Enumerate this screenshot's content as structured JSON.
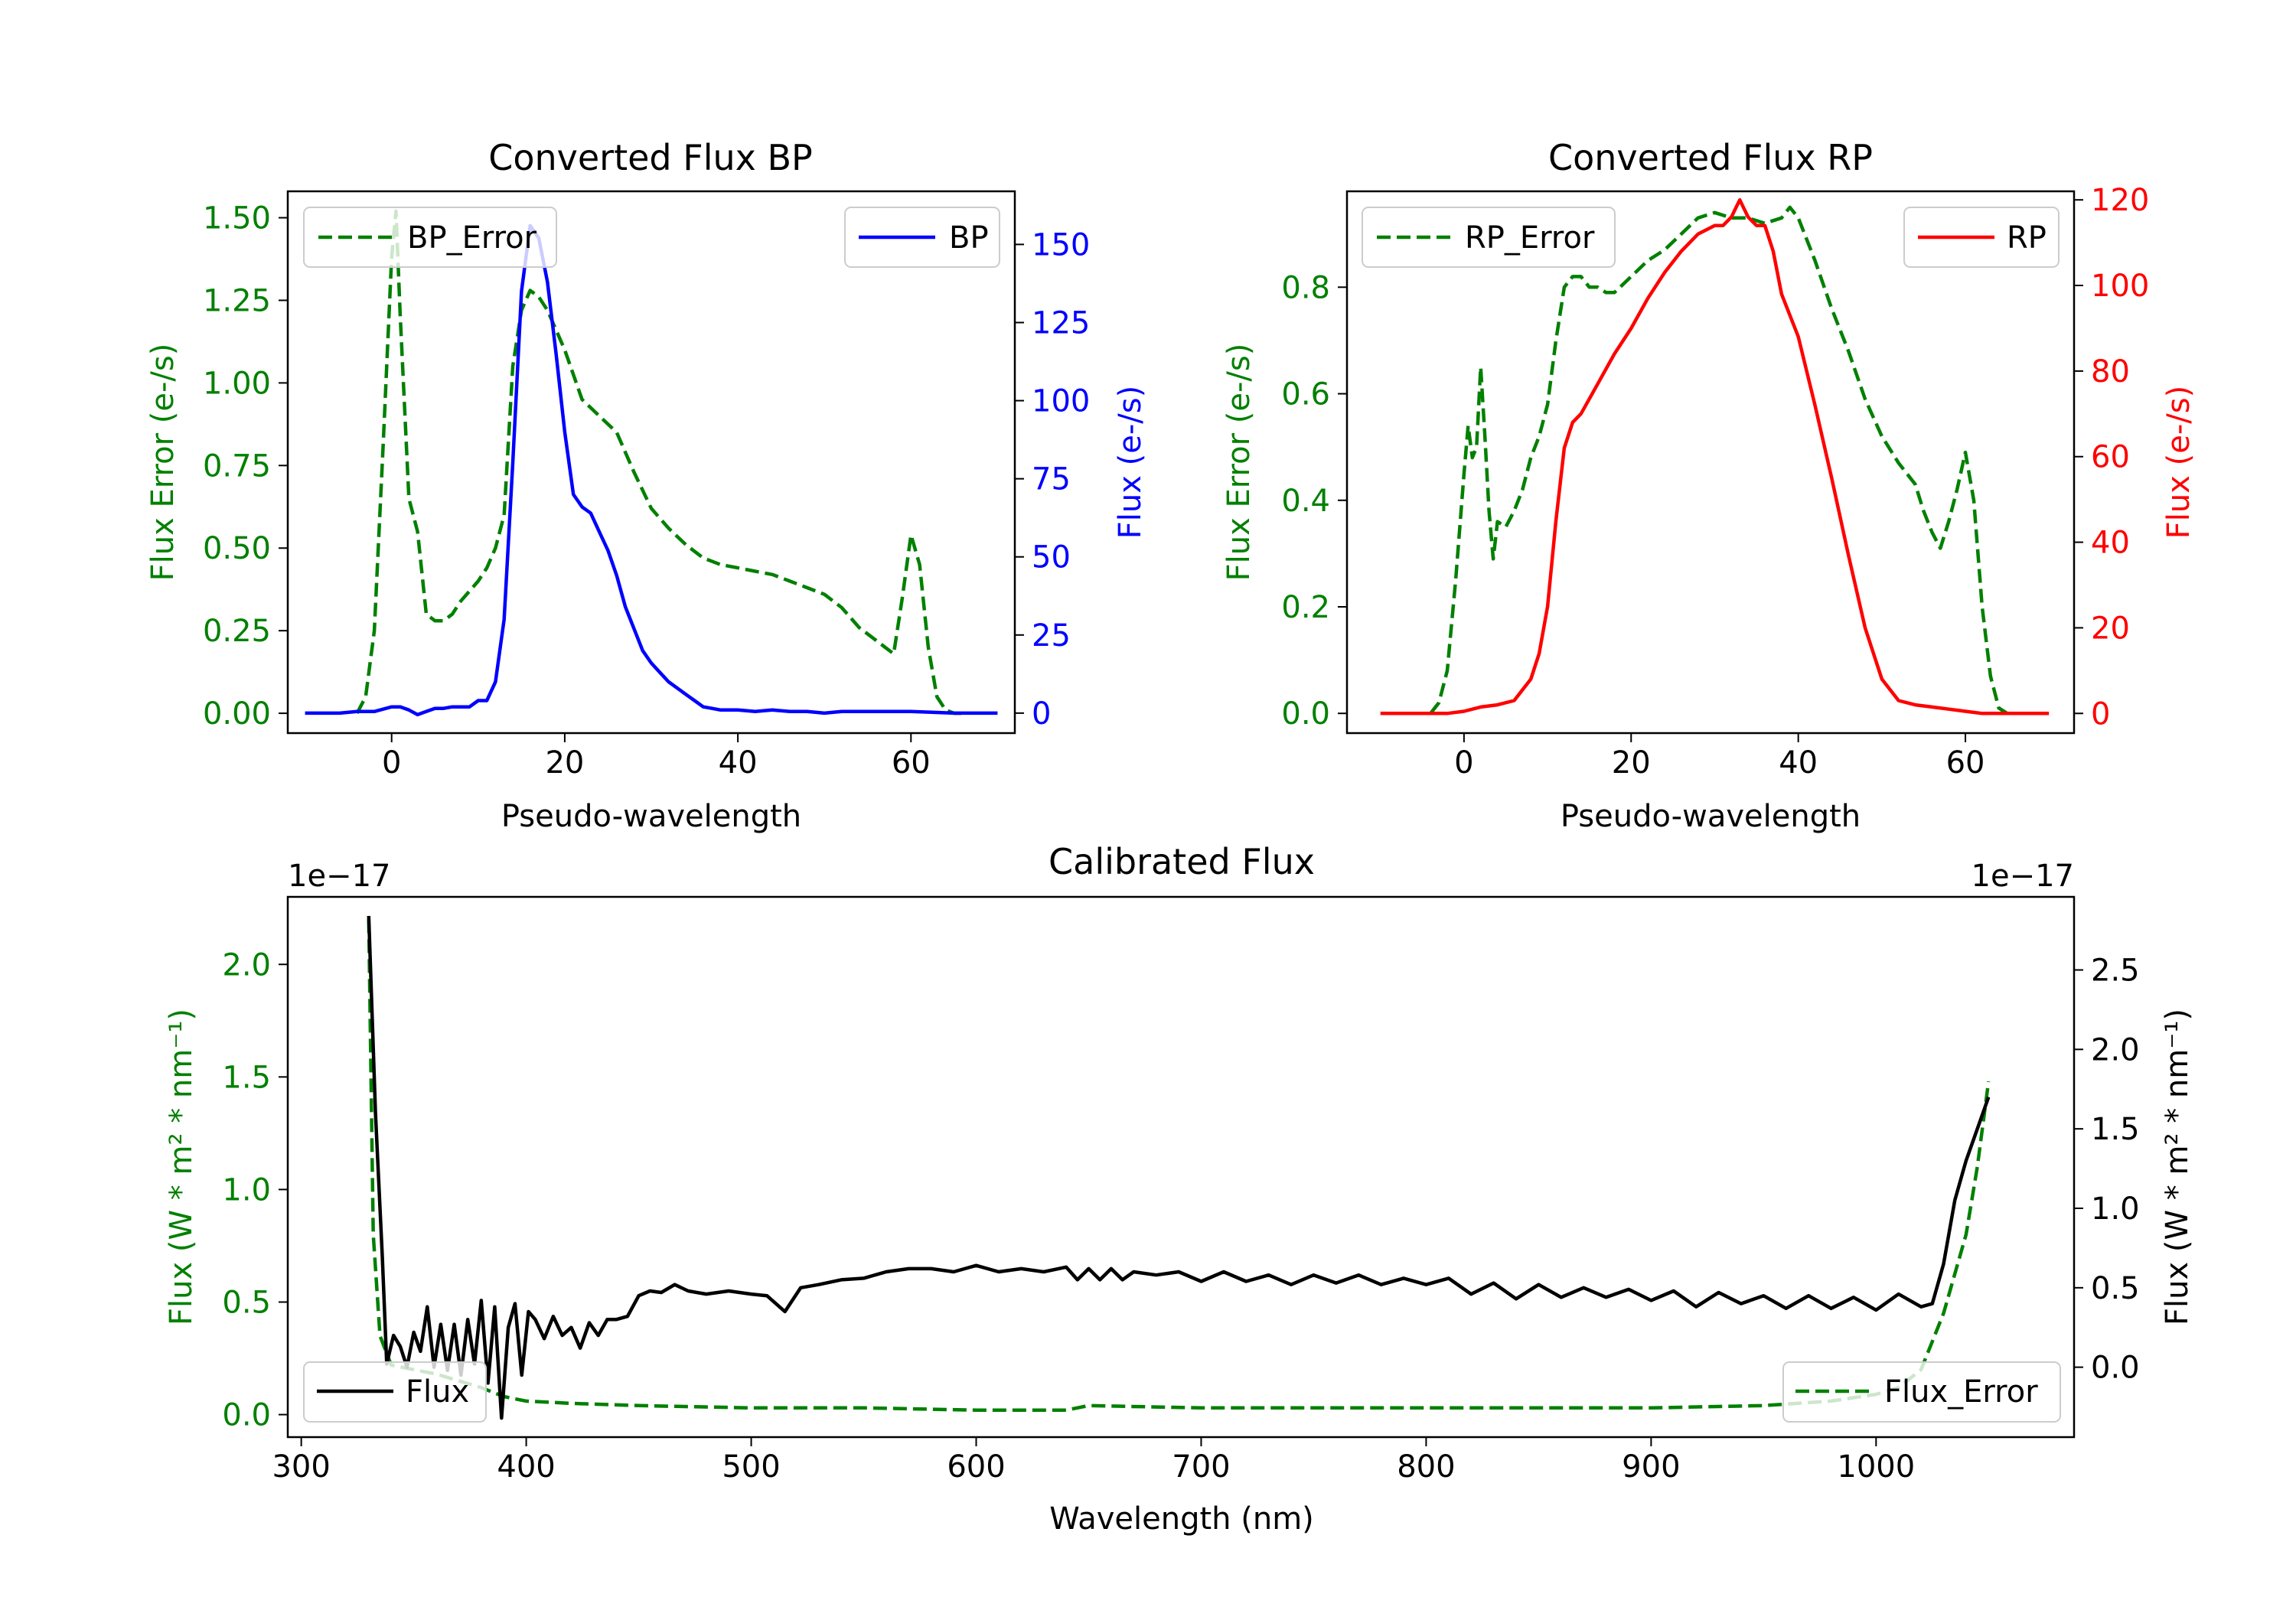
{
  "chart_data": [
    {
      "type": "line",
      "title": "Converted Flux BP",
      "xlabel": "Pseudo-wavelength",
      "ylabel_left": "Flux Error (e-/s)",
      "ylabel_right": "Flux (e-/s)",
      "xlim": [
        -12,
        72
      ],
      "ylim_left": [
        -0.06,
        1.58
      ],
      "ylim_right": [
        -6.4,
        167
      ],
      "xticks": [
        0,
        20,
        40,
        60
      ],
      "yticks_left": [
        "0.00",
        "0.25",
        "0.50",
        "0.75",
        "1.00",
        "1.25",
        "1.50"
      ],
      "yticks_right": [
        "0",
        "25",
        "50",
        "75",
        "100",
        "125",
        "150"
      ],
      "left_color": "#008000",
      "right_color": "#0000ff",
      "series": [
        {
          "name": "BP_Error",
          "axis": "left",
          "style": "dashed",
          "color": "#008000",
          "x": [
            -4,
            -3,
            -2,
            -1,
            0,
            0.5,
            1,
            2,
            3,
            4,
            5,
            6,
            7,
            8,
            9,
            10,
            11,
            12,
            13,
            14,
            15,
            16,
            17,
            18,
            19,
            20,
            22,
            24,
            26,
            28,
            30,
            32,
            34,
            36,
            38,
            40,
            42,
            44,
            46,
            48,
            50,
            52,
            54,
            56,
            57,
            58,
            59,
            60,
            61,
            62,
            63,
            64,
            65,
            66
          ],
          "y": [
            0.0,
            0.05,
            0.25,
            0.8,
            1.38,
            1.52,
            1.2,
            0.65,
            0.55,
            0.3,
            0.28,
            0.28,
            0.3,
            0.34,
            0.37,
            0.4,
            0.44,
            0.5,
            0.6,
            1.05,
            1.22,
            1.28,
            1.26,
            1.22,
            1.16,
            1.1,
            0.95,
            0.9,
            0.85,
            0.73,
            0.62,
            0.56,
            0.51,
            0.47,
            0.45,
            0.44,
            0.43,
            0.42,
            0.4,
            0.38,
            0.36,
            0.32,
            0.26,
            0.22,
            0.2,
            0.18,
            0.35,
            0.54,
            0.45,
            0.2,
            0.05,
            0.01,
            0.0,
            0.0
          ]
        },
        {
          "name": "BP",
          "axis": "right",
          "style": "solid",
          "color": "#0000ff",
          "x": [
            -10,
            -6,
            -4,
            -2,
            0,
            1,
            2,
            3,
            4,
            5,
            6,
            7,
            8,
            9,
            10,
            11,
            12,
            13,
            14,
            15,
            16,
            17,
            18,
            19,
            20,
            21,
            22,
            23,
            24,
            25,
            26,
            27,
            28,
            29,
            30,
            31,
            32,
            33,
            34,
            35,
            36,
            37,
            38,
            40,
            42,
            44,
            46,
            48,
            50,
            52,
            55,
            60,
            65,
            70
          ],
          "y": [
            0,
            0,
            0.5,
            0.5,
            2,
            2,
            1,
            -0.5,
            0.5,
            1.5,
            1.5,
            2,
            2,
            2,
            4,
            4,
            10,
            30,
            80,
            135,
            156,
            152,
            138,
            115,
            90,
            70,
            66,
            64,
            58,
            52,
            44,
            34,
            27,
            20,
            16,
            13,
            10,
            8,
            6,
            4,
            2,
            1.5,
            1,
            1,
            0.5,
            1,
            0.5,
            0.5,
            0,
            0.5,
            0.5,
            0.5,
            0,
            0
          ]
        }
      ],
      "legend": [
        {
          "label": "BP_Error",
          "placement": "upper left"
        },
        {
          "label": "BP",
          "placement": "upper right"
        }
      ]
    },
    {
      "type": "line",
      "title": "Converted Flux RP",
      "xlabel": "Pseudo-wavelength",
      "ylabel_left": "Flux Error (e-/s)",
      "ylabel_right": "Flux (e-/s)",
      "xlim": [
        -14,
        73
      ],
      "ylim_left": [
        -0.037,
        0.98
      ],
      "ylim_right": [
        -4.6,
        122
      ],
      "xticks": [
        0,
        20,
        40,
        60
      ],
      "yticks_left": [
        "0.0",
        "0.2",
        "0.4",
        "0.6",
        "0.8"
      ],
      "yticks_right": [
        "0",
        "20",
        "40",
        "60",
        "80",
        "100",
        "120"
      ],
      "left_color": "#008000",
      "right_color": "#ff0000",
      "series": [
        {
          "name": "RP_Error",
          "axis": "left",
          "style": "dashed",
          "color": "#008000",
          "x": [
            -4,
            -3,
            -2,
            -1,
            0,
            0.5,
            1,
            1.5,
            2,
            2.5,
            3,
            3.5,
            4,
            5,
            6,
            7,
            8,
            9,
            10,
            11,
            12,
            13,
            14,
            15,
            16,
            17,
            18,
            20,
            22,
            24,
            26,
            28,
            30,
            32,
            34,
            36,
            38,
            39,
            40,
            42,
            44,
            46,
            48,
            50,
            52,
            54,
            55,
            56,
            57,
            58,
            59,
            60,
            61,
            62,
            63,
            64,
            65
          ],
          "y": [
            0.0,
            0.02,
            0.08,
            0.25,
            0.45,
            0.54,
            0.48,
            0.5,
            0.65,
            0.52,
            0.38,
            0.29,
            0.36,
            0.35,
            0.38,
            0.42,
            0.48,
            0.52,
            0.58,
            0.7,
            0.8,
            0.82,
            0.82,
            0.8,
            0.8,
            0.79,
            0.79,
            0.82,
            0.85,
            0.87,
            0.9,
            0.93,
            0.94,
            0.93,
            0.93,
            0.92,
            0.93,
            0.95,
            0.93,
            0.85,
            0.76,
            0.68,
            0.59,
            0.52,
            0.47,
            0.43,
            0.38,
            0.34,
            0.31,
            0.36,
            0.42,
            0.49,
            0.4,
            0.2,
            0.07,
            0.01,
            0.0
          ]
        },
        {
          "name": "RP",
          "axis": "right",
          "style": "solid",
          "color": "#ff0000",
          "x": [
            -10,
            -4,
            -2,
            0,
            2,
            4,
            6,
            8,
            9,
            10,
            11,
            12,
            13,
            14,
            16,
            18,
            20,
            22,
            24,
            26,
            28,
            30,
            31,
            32,
            33,
            34,
            35,
            36,
            37,
            38,
            40,
            42,
            44,
            46,
            48,
            50,
            52,
            54,
            56,
            58,
            60,
            62,
            65,
            70
          ],
          "y": [
            0,
            0,
            0,
            0.5,
            1.5,
            2,
            3,
            8,
            14,
            25,
            45,
            62,
            68,
            70,
            77,
            84,
            90,
            97,
            103,
            108,
            112,
            114,
            114,
            116,
            120,
            116,
            114,
            114,
            108,
            98,
            88,
            72,
            55,
            37,
            20,
            8,
            3,
            2,
            1.5,
            1,
            0.5,
            0,
            0,
            0
          ]
        }
      ],
      "legend": [
        {
          "label": "RP_Error",
          "placement": "upper left"
        },
        {
          "label": "RP",
          "placement": "upper right"
        }
      ]
    },
    {
      "type": "line",
      "title": "Calibrated Flux",
      "xlabel": "Wavelength (nm)",
      "ylabel_left": "Flux (W * m² * nm⁻¹)",
      "ylabel_right": "Flux (W * m² * nm⁻¹)",
      "left_offset_text": "1e−17",
      "right_offset_text": "1e−17",
      "xlim": [
        294,
        1088
      ],
      "ylim_left": [
        -0.1,
        2.3
      ],
      "ylim_right": [
        -0.44,
        2.96
      ],
      "xticks": [
        300,
        400,
        500,
        600,
        700,
        800,
        900,
        1000
      ],
      "yticks_left": [
        "0.0",
        "0.5",
        "1.0",
        "1.5",
        "2.0"
      ],
      "yticks_right": [
        "0.0",
        "0.5",
        "1.0",
        "1.5",
        "2.0",
        "2.5"
      ],
      "left_color": "#008000",
      "right_color": "#000000",
      "series": [
        {
          "name": "Flux_Error",
          "axis": "left",
          "style": "dashed",
          "color": "#008000",
          "x": [
            330,
            332,
            335,
            340,
            350,
            360,
            380,
            390,
            400,
            420,
            450,
            500,
            550,
            600,
            640,
            650,
            700,
            800,
            900,
            950,
            980,
            1000,
            1010,
            1020,
            1030,
            1040,
            1045,
            1050
          ],
          "y": [
            2.2,
            0.8,
            0.35,
            0.22,
            0.2,
            0.18,
            0.12,
            0.08,
            0.06,
            0.05,
            0.04,
            0.03,
            0.03,
            0.02,
            0.02,
            0.04,
            0.03,
            0.03,
            0.03,
            0.04,
            0.06,
            0.09,
            0.12,
            0.2,
            0.45,
            0.8,
            1.1,
            1.48
          ]
        },
        {
          "name": "Flux",
          "axis": "right",
          "style": "solid",
          "color": "#000000",
          "x": [
            330,
            333,
            336,
            338,
            341,
            344,
            347,
            350,
            353,
            356,
            359,
            362,
            365,
            368,
            371,
            374,
            377,
            380,
            383,
            386,
            389,
            392,
            395,
            398,
            401,
            404,
            408,
            412,
            416,
            420,
            424,
            428,
            432,
            436,
            440,
            445,
            450,
            455,
            460,
            466,
            472,
            480,
            490,
            500,
            507,
            515,
            522,
            530,
            540,
            550,
            560,
            570,
            580,
            590,
            600,
            610,
            620,
            630,
            640,
            645,
            650,
            655,
            660,
            665,
            670,
            680,
            690,
            700,
            710,
            720,
            730,
            740,
            750,
            760,
            770,
            780,
            790,
            800,
            810,
            820,
            830,
            840,
            850,
            860,
            870,
            880,
            890,
            900,
            910,
            920,
            930,
            940,
            950,
            960,
            970,
            980,
            990,
            1000,
            1010,
            1020,
            1025,
            1030,
            1035,
            1040,
            1045,
            1050
          ],
          "y": [
            2.84,
            1.6,
            0.7,
            0.02,
            0.2,
            0.13,
            0.0,
            0.22,
            0.1,
            0.38,
            0.0,
            0.27,
            -0.02,
            0.27,
            -0.05,
            0.3,
            0.02,
            0.42,
            -0.1,
            0.38,
            -0.32,
            0.25,
            0.4,
            -0.05,
            0.35,
            0.3,
            0.18,
            0.32,
            0.2,
            0.25,
            0.12,
            0.28,
            0.2,
            0.3,
            0.3,
            0.32,
            0.45,
            0.48,
            0.47,
            0.52,
            0.48,
            0.46,
            0.48,
            0.46,
            0.45,
            0.35,
            0.5,
            0.52,
            0.55,
            0.56,
            0.6,
            0.62,
            0.62,
            0.6,
            0.64,
            0.6,
            0.62,
            0.6,
            0.63,
            0.55,
            0.62,
            0.55,
            0.62,
            0.55,
            0.6,
            0.58,
            0.6,
            0.54,
            0.6,
            0.54,
            0.58,
            0.52,
            0.58,
            0.53,
            0.58,
            0.52,
            0.56,
            0.52,
            0.56,
            0.46,
            0.53,
            0.43,
            0.52,
            0.44,
            0.5,
            0.44,
            0.49,
            0.42,
            0.48,
            0.38,
            0.47,
            0.4,
            0.45,
            0.37,
            0.45,
            0.37,
            0.44,
            0.36,
            0.46,
            0.38,
            0.4,
            0.65,
            1.05,
            1.3,
            1.5,
            1.7
          ]
        }
      ],
      "legend": [
        {
          "label": "Flux",
          "placement": "lower left"
        },
        {
          "label": "Flux_Error",
          "placement": "lower right"
        }
      ]
    }
  ]
}
